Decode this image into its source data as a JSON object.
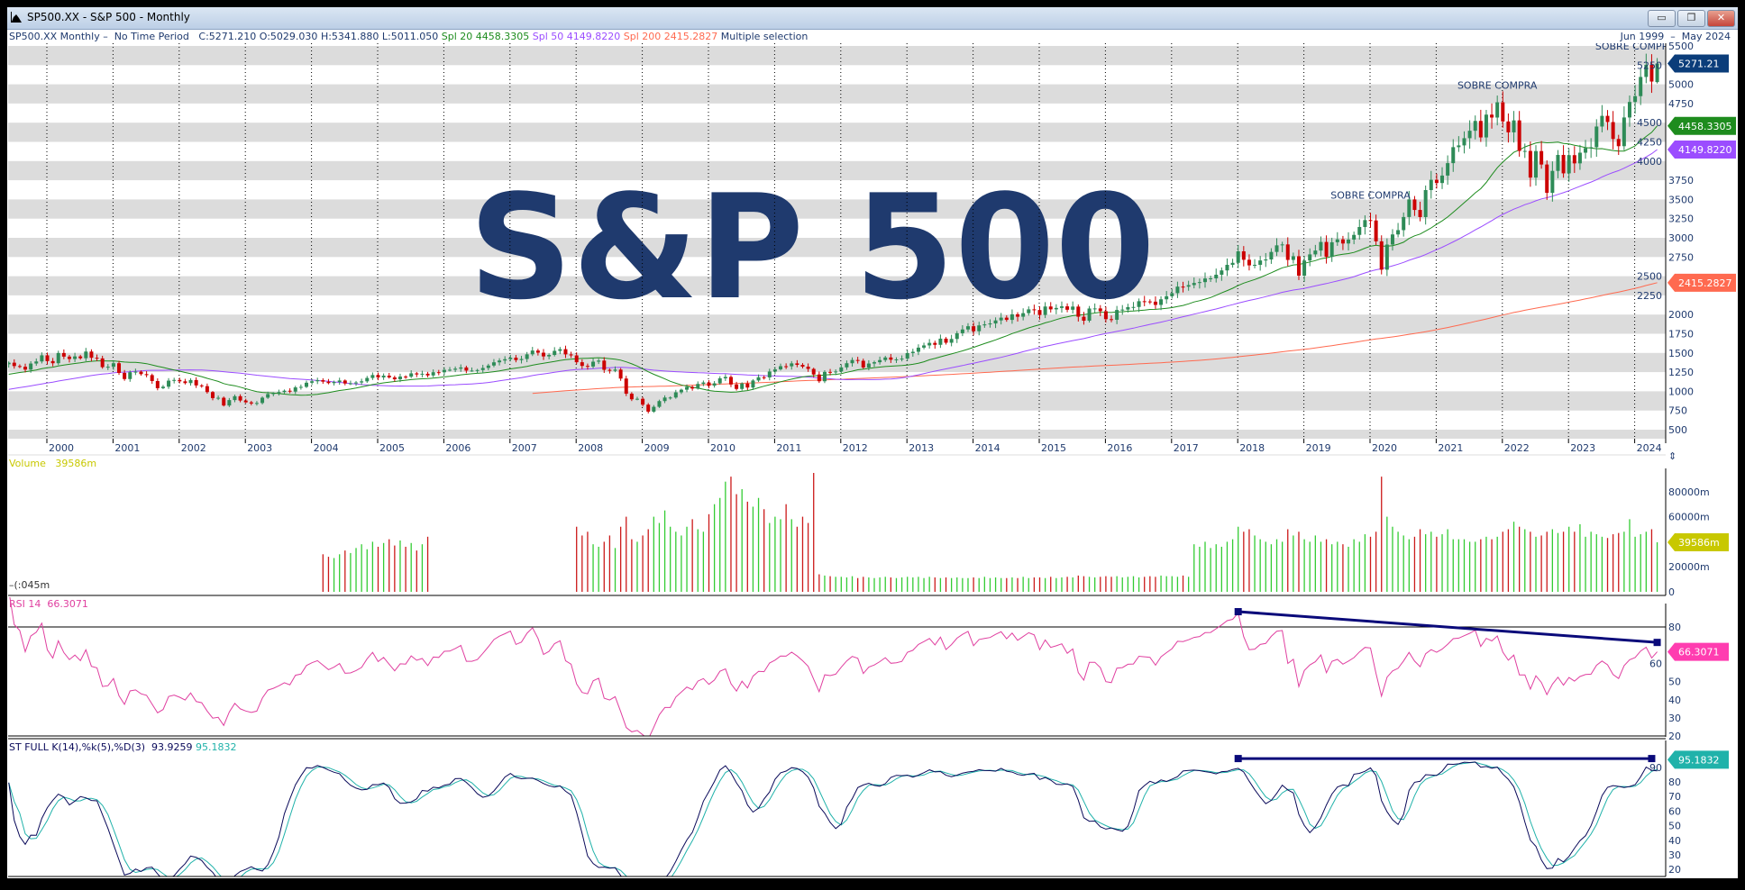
{
  "window": {
    "title": "SP500.XX - S&P 500 - Monthly",
    "controls": {
      "minimize": "▭",
      "restore": "❐",
      "close": "✕"
    }
  },
  "header": {
    "symbol_period": "SP500.XX Monthly –  No Time Period",
    "close": "C:5271.210",
    "open": "O:5029.030",
    "high": "H:5341.880",
    "low": "L:5011.050",
    "sma20": "Spl 20 4458.3305",
    "sma50": "Spl 50 4149.8220",
    "sma200": "Spl 200 2415.2827",
    "selection": "Multiple selection",
    "date_range": "Jun 1999  –  May 2024"
  },
  "colors": {
    "up": "#2e8b57",
    "down": "#cc0000",
    "sma20": "#1e8c1e",
    "sma50": "#9b4dff",
    "sma200": "#ff6a50",
    "last_price_tag": "#0b3d7a",
    "volume_tag": "#c8c800",
    "rsi": "#e040a0",
    "rsi_tag": "#ff3db0",
    "stoch_k": "#0a0a5a",
    "stoch_d": "#20b2aa",
    "trendline": "#0a0a7a",
    "band": "#dcdcdc",
    "vol_up": "#33cc33",
    "vol_down": "#cc1a1a"
  },
  "panels": {
    "volume": {
      "label": "Volume",
      "value": "39586m",
      "tag": "39586m",
      "min_label": "–(:045m",
      "ticks": [
        "0",
        "20000m",
        "60000m",
        "80000m"
      ]
    },
    "rsi": {
      "label": "RSI 14",
      "value": "66.3071",
      "tag": "66.3071",
      "ticks": [
        "20",
        "30",
        "40",
        "50",
        "60",
        "80"
      ]
    },
    "stoch": {
      "label": "ST FULL K(14),%k(5),%D(3)",
      "k_value": "93.9259",
      "d_value": "95.1832",
      "tag": "95.1832",
      "ticks": [
        "20",
        "30",
        "40",
        "50",
        "60",
        "70",
        "80",
        "90"
      ]
    }
  },
  "price_tags": {
    "last": "5271.21",
    "sma20": "4458.3305",
    "sma50": "4149.8220",
    "sma200": "2415.2827"
  },
  "annotations": [
    {
      "text": "SOBRE COMPRA",
      "date": "2020-01",
      "price": 3560
    },
    {
      "text": "SOBRE COMPRA",
      "date": "2021-12",
      "price": 4990
    },
    {
      "text": "SOBRE COMPRA",
      "date": "2024-01",
      "price": 5500
    }
  ],
  "chart_data": {
    "type": "candlestick",
    "start": "1999-06",
    "end": "2024-05",
    "frequency": "monthly",
    "x_tick_labels": [
      "2000",
      "2001",
      "2002",
      "2003",
      "2004",
      "2005",
      "2006",
      "2007",
      "2008",
      "2009",
      "2010",
      "2011",
      "2012",
      "2013",
      "2014",
      "2015",
      "2016",
      "2017",
      "2018",
      "2019",
      "2020",
      "2021",
      "2022",
      "2023",
      "2024"
    ],
    "y_ticks": [
      500,
      750,
      1000,
      1250,
      1500,
      1750,
      2000,
      2250,
      2500,
      2750,
      3000,
      3250,
      3500,
      3750,
      4000,
      4250,
      4500,
      4750,
      5000,
      5250,
      5500
    ],
    "ylim": [
      500,
      5500
    ],
    "last_candle": {
      "open": 5029.03,
      "high": 5341.88,
      "low": 5011.05,
      "close": 5271.21
    },
    "close": [
      1373,
      1329,
      1320,
      1283,
      1362,
      1389,
      1469,
      1394,
      1366,
      1499,
      1452,
      1421,
      1455,
      1431,
      1518,
      1437,
      1429,
      1315,
      1320,
      1366,
      1240,
      1160,
      1249,
      1256,
      1224,
      1211,
      1134,
      1041,
      1060,
      1139,
      1148,
      1130,
      1107,
      1147,
      1077,
      1067,
      990,
      912,
      916,
      815,
      886,
      936,
      880,
      856,
      841,
      848,
      917,
      964,
      975,
      990,
      1008,
      996,
      1051,
      1058,
      1112,
      1131,
      1145,
      1126,
      1107,
      1121,
      1141,
      1102,
      1104,
      1115,
      1130,
      1174,
      1212,
      1181,
      1204,
      1181,
      1157,
      1192,
      1191,
      1234,
      1220,
      1229,
      1207,
      1249,
      1248,
      1280,
      1281,
      1295,
      1311,
      1270,
      1270,
      1277,
      1304,
      1336,
      1378,
      1401,
      1418,
      1438,
      1407,
      1421,
      1482,
      1531,
      1503,
      1455,
      1474,
      1527,
      1549,
      1481,
      1468,
      1379,
      1331,
      1323,
      1386,
      1400,
      1280,
      1267,
      1283,
      1166,
      969,
      896,
      903,
      826,
      735,
      798,
      873,
      919,
      919,
      987,
      1021,
      1057,
      1036,
      1096,
      1115,
      1074,
      1104,
      1169,
      1187,
      1089,
      1031,
      1102,
      1049,
      1141,
      1183,
      1181,
      1258,
      1286,
      1327,
      1326,
      1364,
      1345,
      1321,
      1292,
      1219,
      1131,
      1253,
      1247,
      1258,
      1312,
      1366,
      1408,
      1398,
      1310,
      1362,
      1379,
      1407,
      1441,
      1412,
      1416,
      1426,
      1498,
      1515,
      1569,
      1598,
      1631,
      1606,
      1686,
      1633,
      1682,
      1757,
      1806,
      1848,
      1783,
      1859,
      1872,
      1884,
      1924,
      1960,
      1931,
      2003,
      1972,
      2018,
      2068,
      2059,
      1995,
      2105,
      2068,
      2086,
      2107,
      2063,
      2104,
      1972,
      1920,
      2079,
      2080,
      2044,
      1940,
      1932,
      2060,
      2065,
      2097,
      2099,
      2174,
      2171,
      2168,
      2126,
      2199,
      2239,
      2279,
      2364,
      2363,
      2384,
      2412,
      2423,
      2470,
      2472,
      2519,
      2575,
      2648,
      2674,
      2824,
      2714,
      2641,
      2648,
      2705,
      2718,
      2816,
      2902,
      2914,
      2712,
      2760,
      2507,
      2704,
      2784,
      2834,
      2946,
      2752,
      2942,
      2980,
      2926,
      2977,
      3038,
      3141,
      3231,
      3226,
      2954,
      2585,
      2912,
      3044,
      3100,
      3271,
      3500,
      3363,
      3270,
      3622,
      3756,
      3714,
      3811,
      3973,
      4181,
      4204,
      4298,
      4395,
      4523,
      4308,
      4605,
      4567,
      4766,
      4516,
      4374,
      4530,
      4132,
      4132,
      3785,
      4130,
      3955,
      3586,
      3872,
      4080,
      3840,
      4077,
      3970,
      4109,
      4169,
      4180,
      4450,
      4589,
      4508,
      4288,
      4194,
      4568,
      4770,
      4846,
      5096,
      5254,
      5036,
      5271.21
    ],
    "volume_millions": [
      0,
      0,
      0,
      0,
      0,
      0,
      0,
      0,
      0,
      0,
      0,
      0,
      0,
      0,
      0,
      0,
      0,
      0,
      0,
      0,
      0,
      0,
      0,
      0,
      0,
      0,
      0,
      0,
      0,
      0,
      0,
      0,
      0,
      0,
      0,
      0,
      0,
      0,
      0,
      0,
      0,
      0,
      0,
      0,
      0,
      0,
      0,
      0,
      0,
      0,
      0,
      0,
      0,
      0,
      0,
      0,
      0,
      30000,
      28000,
      27000,
      30000,
      33000,
      31000,
      35000,
      38000,
      34000,
      40000,
      36000,
      39000,
      42000,
      37000,
      41000,
      36000,
      39000,
      33000,
      38000,
      44000,
      0,
      0,
      0,
      0,
      0,
      0,
      0,
      0,
      0,
      0,
      0,
      0,
      0,
      0,
      0,
      0,
      0,
      0,
      0,
      0,
      0,
      0,
      0,
      0,
      0,
      0,
      52000,
      45000,
      48000,
      38000,
      36000,
      40000,
      45000,
      35000,
      52000,
      60000,
      42000,
      40000,
      45000,
      50000,
      60000,
      55000,
      65000,
      52000,
      48000,
      45000,
      52000,
      58000,
      50000,
      48000,
      62000,
      70000,
      75000,
      88000,
      92000,
      78000,
      82000,
      72000,
      68000,
      75000,
      66000,
      55000,
      60000,
      58000,
      70000,
      58000,
      52000,
      60000,
      55000,
      95000,
      14000,
      13000,
      12500,
      12000,
      12000,
      11500,
      12500,
      11000,
      12000,
      11500,
      11000,
      11500,
      12000,
      11500,
      11000,
      11500,
      12000,
      11500,
      12000,
      11000,
      12000,
      11500,
      11000,
      11500,
      11000,
      11500,
      11000,
      11000,
      11500,
      11000,
      12000,
      11000,
      11500,
      11000,
      11000,
      11500,
      11000,
      12000,
      11000,
      11500,
      11500,
      11000,
      12000,
      11000,
      11500,
      12000,
      11500,
      13000,
      12500,
      12000,
      11500,
      12000,
      12500,
      12000,
      12500,
      11500,
      12000,
      12500,
      11500,
      12000,
      12500,
      12000,
      13000,
      12500,
      12500,
      12000,
      13000,
      12000,
      38000,
      36000,
      40000,
      35000,
      38000,
      36000,
      40000,
      42000,
      52000,
      48000,
      50000,
      45000,
      42000,
      40000,
      38000,
      42000,
      40000,
      50000,
      45000,
      48000,
      42000,
      40000,
      45000,
      40000,
      42000,
      38000,
      40000,
      38000,
      36000,
      42000,
      40000,
      46000,
      44000,
      48000,
      92000,
      60000,
      52000,
      48000,
      45000,
      42000,
      44000,
      50000,
      46000,
      48000,
      44000,
      46000,
      50000,
      42000,
      42000,
      42000,
      40000,
      40000,
      42000,
      44000,
      42000,
      44000,
      48000,
      50000,
      56000,
      52000,
      50000,
      48000,
      44000,
      45000,
      48000,
      50000,
      47000,
      48000,
      52000,
      48000,
      54000,
      44000,
      48000,
      46000,
      44000,
      43000,
      46000,
      47000,
      48000,
      58000,
      44000,
      46000,
      48000,
      50000,
      39586
    ],
    "rsi_trendline": {
      "from": {
        "date": "2018-01",
        "value": 88.4
      },
      "to": {
        "date": "2024-05",
        "value": 71.5
      }
    },
    "stoch_trendline": {
      "from": {
        "date": "2018-01",
        "value": 96
      },
      "to": {
        "date": "2024-04",
        "value": 96
      }
    },
    "rsi_levels": [
      80,
      20
    ]
  }
}
